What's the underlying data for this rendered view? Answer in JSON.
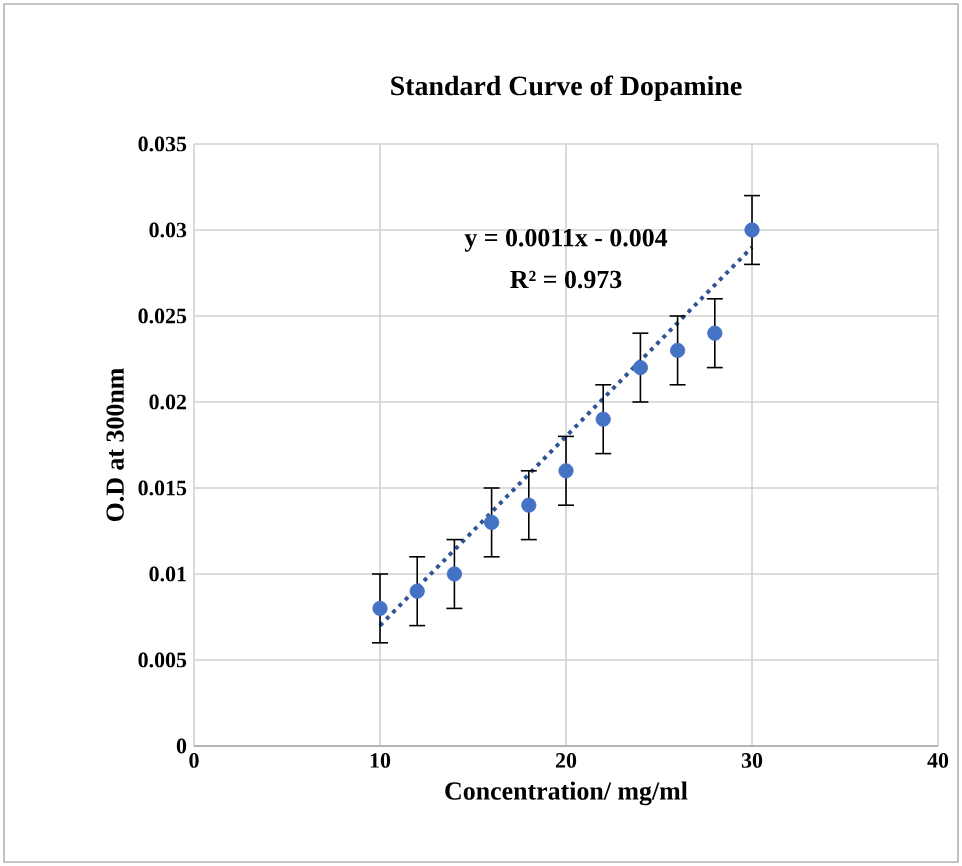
{
  "chart_data": {
    "type": "scatter",
    "title": "Standard Curve of Dopamine",
    "xlabel": "Concentration/ mg/ml",
    "ylabel": "O.D at 300nm",
    "x": [
      10,
      12,
      14,
      16,
      18,
      20,
      22,
      24,
      26,
      28,
      30
    ],
    "series": [
      {
        "type": "scatter",
        "color": "#4472c4",
        "marker": "circle",
        "values": [
          0.008,
          0.009,
          0.01,
          0.013,
          0.014,
          0.016,
          0.019,
          0.022,
          0.023,
          0.024,
          0.03
        ],
        "errors": [
          0.002,
          0.002,
          0.002,
          0.002,
          0.002,
          0.002,
          0.002,
          0.002,
          0.002,
          0.002,
          0.002
        ]
      },
      {
        "type": "line",
        "color": "#2f5597",
        "line_style": "dotted",
        "marker": "none",
        "x": [
          10,
          30
        ],
        "values": [
          0.007,
          0.029
        ]
      }
    ],
    "annotations": [
      "y = 0.0011x - 0.004",
      "R² = 0.973"
    ],
    "xlim": [
      0,
      40
    ],
    "xticks": [
      0,
      10,
      20,
      30,
      40
    ],
    "ylim": [
      0,
      0.035
    ],
    "yticks": [
      0,
      0.005,
      0.01,
      0.015,
      0.02,
      0.025,
      0.03,
      0.035
    ],
    "grid": true
  }
}
